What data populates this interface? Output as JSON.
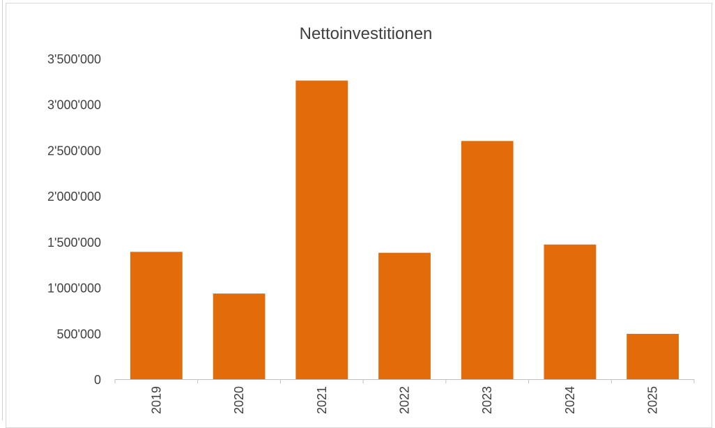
{
  "chart_data": {
    "type": "bar",
    "title": "Nettoinvestitionen",
    "xlabel": "",
    "ylabel": "",
    "categories": [
      "2019",
      "2020",
      "2021",
      "2022",
      "2023",
      "2024",
      "2025"
    ],
    "values": [
      1390000,
      935000,
      3260000,
      1380000,
      2600000,
      1470000,
      495000
    ],
    "ylim": [
      0,
      3500000
    ],
    "yticks": [
      0,
      500000,
      1000000,
      1500000,
      2000000,
      2500000,
      3000000,
      3500000
    ],
    "ytick_labels": [
      "0",
      "500'000",
      "1'000'000",
      "1'500'000",
      "2'000'000",
      "2'500'000",
      "3'000'000",
      "3'500'000"
    ],
    "bar_color": "#E36C0A",
    "grid": false,
    "legend": "none"
  }
}
